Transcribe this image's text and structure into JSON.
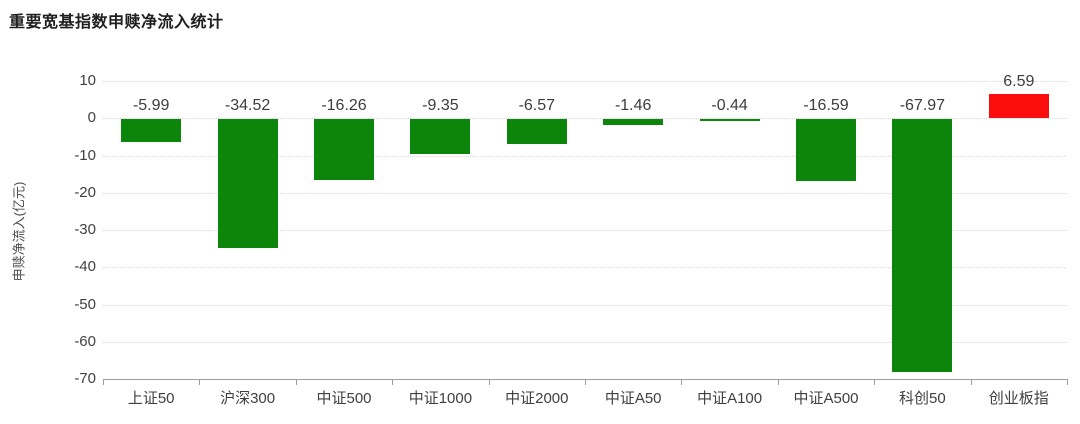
{
  "page": {
    "title": "重要宽基指数申赎净流入统计"
  },
  "chart_data": {
    "type": "bar",
    "title": "重要宽基指数申赎净流入统计",
    "xlabel": "",
    "ylabel": "申赎净流入(亿元)",
    "categories": [
      "上证50",
      "沪深300",
      "中证500",
      "中证1000",
      "中证2000",
      "中证A50",
      "中证A100",
      "中证A500",
      "科创50",
      "创业板指"
    ],
    "values": [
      -5.99,
      -34.52,
      -16.26,
      -9.35,
      -6.57,
      -1.46,
      -0.44,
      -16.59,
      -67.97,
      6.59
    ],
    "value_labels": [
      "-5.99",
      "-34.52",
      "-16.26",
      "-9.35",
      "-6.57",
      "-1.46",
      "-0.44",
      "-16.59",
      "-67.97",
      "6.59"
    ],
    "ylim": [
      -70,
      10
    ],
    "yticks": [
      10,
      0,
      -10,
      -20,
      -30,
      -40,
      -50,
      -60,
      -70
    ],
    "grid": true,
    "legend_position": "none",
    "colors": {
      "negative_bar": "#0b860b",
      "positive_bar": "#fa0d0d"
    }
  }
}
